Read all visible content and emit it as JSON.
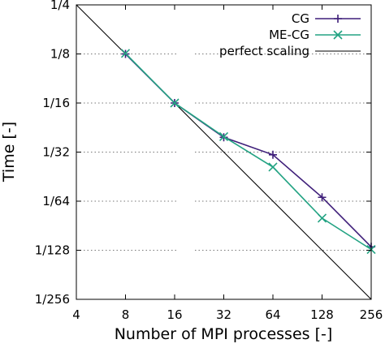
{
  "chart_data": {
    "type": "line",
    "title": "",
    "xlabel": "Number of MPI processes [-]",
    "ylabel": "Time [-]",
    "x_scale": "log2",
    "y_scale": "log2",
    "xlim": [
      4,
      256
    ],
    "ylim": [
      0.00390625,
      0.25
    ],
    "x_ticks": [
      4,
      8,
      16,
      32,
      64,
      128,
      256
    ],
    "x_tick_labels": [
      "4",
      "8",
      "16",
      "32",
      "64",
      "128",
      "256"
    ],
    "y_ticks": [
      0.25,
      0.125,
      0.0625,
      0.03125,
      0.015625,
      0.0078125,
      0.00390625
    ],
    "y_tick_labels": [
      "1/4",
      "1/8",
      "1/16",
      "1/32",
      "1/64",
      "1/128",
      "1/256"
    ],
    "grid": "horizontal dotted",
    "legend_position": "top-right",
    "series": [
      {
        "name": "CG",
        "color": "#3f1f7a",
        "marker": "plus",
        "x": [
          8,
          16,
          32,
          64,
          128,
          256
        ],
        "y": [
          0.125,
          0.0625,
          0.0385,
          0.0301,
          0.0165,
          0.0082
        ]
      },
      {
        "name": "ME-CG",
        "color": "#23a383",
        "marker": "cross",
        "x": [
          8,
          16,
          32,
          64,
          128,
          256
        ],
        "y": [
          0.126,
          0.0625,
          0.0389,
          0.0253,
          0.0123,
          0.0079
        ]
      },
      {
        "name": "perfect scaling",
        "color": "#000000",
        "marker": "none",
        "x": [
          4,
          256
        ],
        "y": [
          0.25,
          0.00390625
        ]
      }
    ]
  }
}
